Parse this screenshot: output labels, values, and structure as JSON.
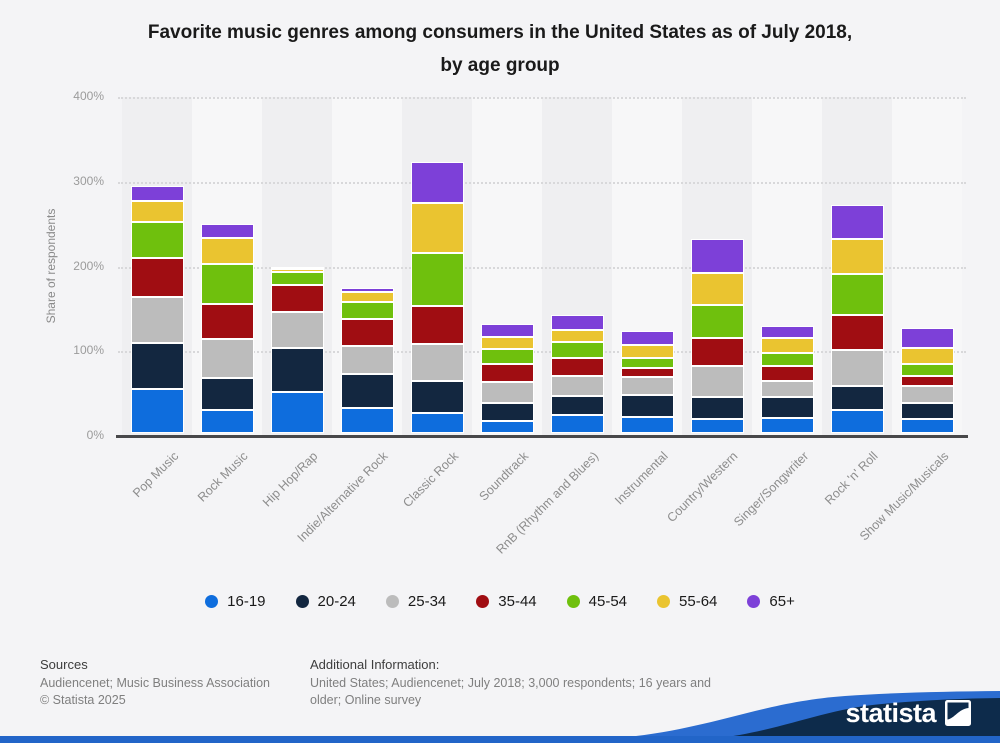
{
  "title": {
    "line1": "Favorite music genres among consumers in the United States as of July 2018,",
    "line2": "by age group"
  },
  "y_axis": {
    "label": "Share of respondents",
    "tick_labels_top_to_bottom": [
      "400%",
      "300%",
      "200%",
      "100%",
      "0%"
    ]
  },
  "chart_data": {
    "type": "bar",
    "stacked": true,
    "title": "Favorite music genres among consumers in the United States as of July 2018, by age group",
    "xlabel": "",
    "ylabel": "Share of respondents",
    "ylim": [
      0,
      400
    ],
    "yticks": [
      0,
      100,
      200,
      300,
      400
    ],
    "grid": "horizontal-dotted",
    "legend_position": "bottom",
    "categories": [
      "Pop Music",
      "Rock Music",
      "Hip Hop/Rap",
      "Indie/Alternative Rock",
      "Classic Rock",
      "Soundtrack",
      "RnB (Rhythm and Blues)",
      "Instrumental",
      "Country/Western",
      "Singer/Songwriter",
      "Rock 'n' Roll",
      "Show Music/Musicals"
    ],
    "series": [
      {
        "name": "16-19",
        "color": "#0e6ddd",
        "values": [
          52,
          27,
          48,
          30,
          24,
          14,
          21,
          19,
          17,
          18,
          27,
          17
        ]
      },
      {
        "name": "20-24",
        "color": "#132740",
        "values": [
          54,
          38,
          52,
          40,
          37,
          21,
          23,
          26,
          26,
          24,
          29,
          18
        ]
      },
      {
        "name": "25-34",
        "color": "#bcbcbc",
        "values": [
          55,
          46,
          43,
          33,
          44,
          25,
          23,
          21,
          36,
          19,
          42,
          20
        ]
      },
      {
        "name": "35-44",
        "color": "#a00d12",
        "values": [
          46,
          41,
          32,
          31,
          45,
          21,
          21,
          11,
          33,
          18,
          41,
          12
        ]
      },
      {
        "name": "45-54",
        "color": "#6fc00d",
        "values": [
          42,
          47,
          15,
          21,
          62,
          18,
          19,
          12,
          39,
          15,
          49,
          15
        ]
      },
      {
        "name": "55-64",
        "color": "#eac430",
        "values": [
          25,
          31,
          4,
          12,
          59,
          14,
          15,
          15,
          38,
          18,
          41,
          18
        ]
      },
      {
        "name": "65+",
        "color": "#7d40d8",
        "values": [
          17,
          17,
          1,
          4,
          49,
          16,
          17,
          17,
          40,
          14,
          40,
          24
        ]
      }
    ]
  },
  "legend": {
    "items": [
      {
        "label": "16-19",
        "color": "#0e6ddd"
      },
      {
        "label": "20-24",
        "color": "#132740"
      },
      {
        "label": "25-34",
        "color": "#bcbcbc"
      },
      {
        "label": "35-44",
        "color": "#a00d12"
      },
      {
        "label": "45-54",
        "color": "#6fc00d"
      },
      {
        "label": "55-64",
        "color": "#eac430"
      },
      {
        "label": "65+",
        "color": "#7d40d8"
      }
    ]
  },
  "footer": {
    "sources_heading": "Sources",
    "sources_line1": "Audiencenet; Music Business Association",
    "sources_line2": "© Statista 2025",
    "additional_heading": "Additional Information:",
    "additional_text": "United States; Audiencenet; July 2018; 3,000 respondents; 16 years and older; Online survey"
  },
  "brand": {
    "wordmark": "statista",
    "wave_navy": "#0d2b4b",
    "wave_blue": "#2b6cd0",
    "strip_blue": "#2265c8"
  }
}
